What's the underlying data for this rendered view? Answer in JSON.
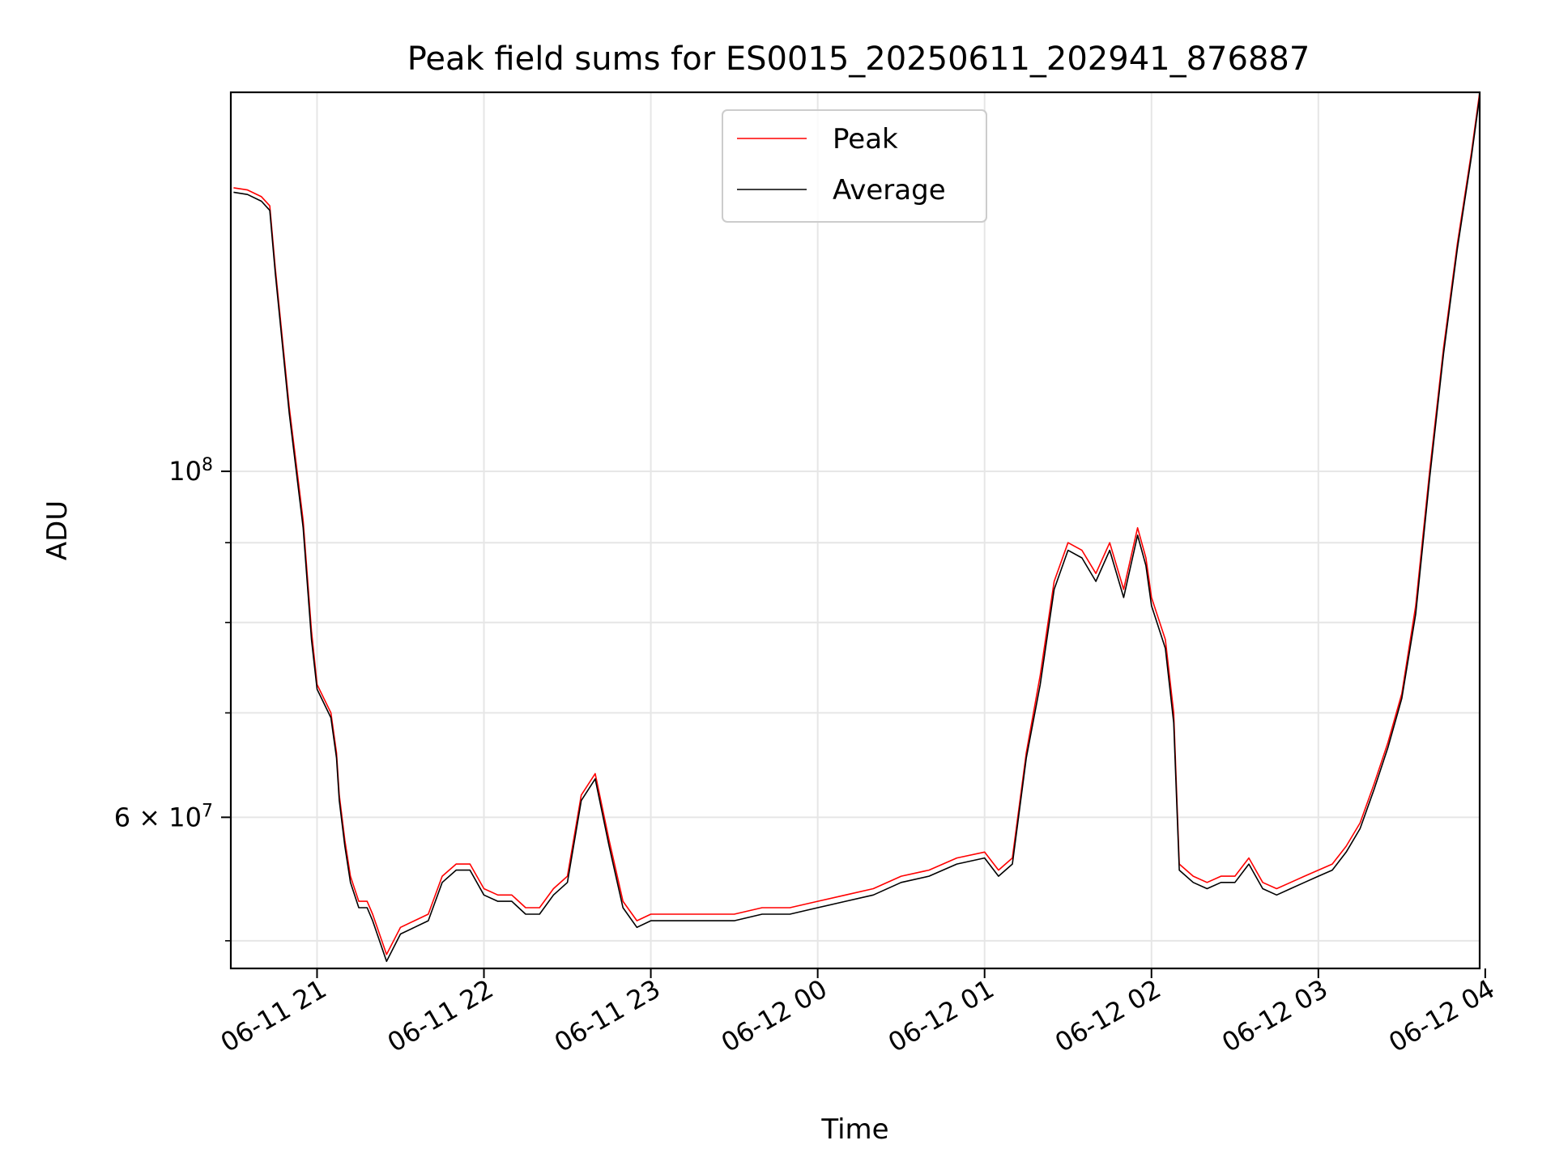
{
  "chart_data": {
    "type": "line",
    "title": "Peak field sums for ES0015_20250611_202941_876887",
    "xlabel": "Time",
    "ylabel": "ADU",
    "y_scale": "log",
    "xlim": [
      "06-11 20:29",
      "06-12 03:58"
    ],
    "ylim": [
      48000000,
      175000000
    ],
    "x_ticks": [
      "06-11 21",
      "06-11 22",
      "06-11 23",
      "06-12 00",
      "06-12 01",
      "06-12 02",
      "06-12 03",
      "06-12 04"
    ],
    "y_major_ticks": [
      {
        "value": 60000000,
        "base": "6",
        "exp": "7"
      },
      {
        "value": 100000000,
        "base": "10",
        "exp": "8"
      }
    ],
    "y_minor_ticks": [
      50000000,
      70000000,
      80000000,
      90000000
    ],
    "grid": true,
    "legend": {
      "position": "top-center",
      "entries": [
        "Peak",
        "Average"
      ]
    },
    "series": [
      {
        "name": "Peak",
        "color": "#ff0000",
        "x": [
          "20:30",
          "20:35",
          "20:40",
          "20:43",
          "20:45",
          "20:50",
          "20:55",
          "20:58",
          "21:00",
          "21:05",
          "21:07",
          "21:08",
          "21:10",
          "21:12",
          "21:15",
          "21:18",
          "21:20",
          "21:25",
          "21:30",
          "21:35",
          "21:40",
          "21:45",
          "21:50",
          "21:55",
          "22:00",
          "22:05",
          "22:10",
          "22:15",
          "22:20",
          "22:25",
          "22:30",
          "22:35",
          "22:40",
          "22:45",
          "22:50",
          "22:55",
          "23:00",
          "23:05",
          "23:10",
          "23:20",
          "23:30",
          "23:40",
          "23:50",
          "00:00",
          "00:10",
          "00:20",
          "00:30",
          "00:40",
          "00:50",
          "01:00",
          "01:05",
          "01:10",
          "01:15",
          "01:20",
          "01:25",
          "01:30",
          "01:35",
          "01:40",
          "01:45",
          "01:50",
          "01:55",
          "01:58",
          "02:00",
          "02:05",
          "02:08",
          "02:10",
          "02:15",
          "02:20",
          "02:25",
          "02:30",
          "02:35",
          "02:40",
          "02:45",
          "02:50",
          "02:55",
          "03:00",
          "03:05",
          "03:10",
          "03:15",
          "03:20",
          "03:25",
          "03:30",
          "03:35",
          "03:40",
          "03:45",
          "03:50",
          "03:55",
          "03:58"
        ],
        "values": [
          152000000,
          151500000,
          150000000,
          148000000,
          135000000,
          110000000,
          93000000,
          79000000,
          73000000,
          70000000,
          66000000,
          62000000,
          58000000,
          55000000,
          53000000,
          53000000,
          52000000,
          49000000,
          51000000,
          51500000,
          52000000,
          55000000,
          56000000,
          56000000,
          54000000,
          53500000,
          53500000,
          52500000,
          52500000,
          54000000,
          55000000,
          62000000,
          64000000,
          58000000,
          53000000,
          51500000,
          52000000,
          52000000,
          52000000,
          52000000,
          52000000,
          52500000,
          52500000,
          53000000,
          53500000,
          54000000,
          55000000,
          55500000,
          56500000,
          57000000,
          55500000,
          56500000,
          66000000,
          74000000,
          85000000,
          90000000,
          89000000,
          86000000,
          90000000,
          84000000,
          92000000,
          88000000,
          83000000,
          78000000,
          70000000,
          56000000,
          55000000,
          54500000,
          55000000,
          55000000,
          56500000,
          54500000,
          54000000,
          54500000,
          55000000,
          55500000,
          56000000,
          57500000,
          59500000,
          63000000,
          67000000,
          72000000,
          82000000,
          100000000,
          120000000,
          140000000,
          160000000,
          175000000
        ]
      },
      {
        "name": "Average",
        "color": "#000000",
        "x": [
          "20:30",
          "20:35",
          "20:40",
          "20:43",
          "20:45",
          "20:50",
          "20:55",
          "20:58",
          "21:00",
          "21:05",
          "21:07",
          "21:08",
          "21:10",
          "21:12",
          "21:15",
          "21:18",
          "21:20",
          "21:25",
          "21:30",
          "21:35",
          "21:40",
          "21:45",
          "21:50",
          "21:55",
          "22:00",
          "22:05",
          "22:10",
          "22:15",
          "22:20",
          "22:25",
          "22:30",
          "22:35",
          "22:40",
          "22:45",
          "22:50",
          "22:55",
          "23:00",
          "23:05",
          "23:10",
          "23:20",
          "23:30",
          "23:40",
          "23:50",
          "00:00",
          "00:10",
          "00:20",
          "00:30",
          "00:40",
          "00:50",
          "01:00",
          "01:05",
          "01:10",
          "01:15",
          "01:20",
          "01:25",
          "01:30",
          "01:35",
          "01:40",
          "01:45",
          "01:50",
          "01:55",
          "01:58",
          "02:00",
          "02:05",
          "02:08",
          "02:10",
          "02:15",
          "02:20",
          "02:25",
          "02:30",
          "02:35",
          "02:40",
          "02:45",
          "02:50",
          "02:55",
          "03:00",
          "03:05",
          "03:10",
          "03:15",
          "03:20",
          "03:25",
          "03:30",
          "03:35",
          "03:40",
          "03:45",
          "03:50",
          "03:55",
          "03:58"
        ],
        "values": [
          151000000,
          150500000,
          149000000,
          147000000,
          134000000,
          109000000,
          92000000,
          78000000,
          72500000,
          69500000,
          65500000,
          61500000,
          57500000,
          54500000,
          52500000,
          52500000,
          51500000,
          48500000,
          50500000,
          51000000,
          51500000,
          54500000,
          55500000,
          55500000,
          53500000,
          53000000,
          53000000,
          52000000,
          52000000,
          53500000,
          54500000,
          61500000,
          63500000,
          57500000,
          52500000,
          51000000,
          51500000,
          51500000,
          51500000,
          51500000,
          51500000,
          52000000,
          52000000,
          52500000,
          53000000,
          53500000,
          54500000,
          55000000,
          56000000,
          56500000,
          55000000,
          56000000,
          65500000,
          73000000,
          84000000,
          89000000,
          88000000,
          85000000,
          89000000,
          83000000,
          91000000,
          87000000,
          82000000,
          77000000,
          69000000,
          55500000,
          54500000,
          54000000,
          54500000,
          54500000,
          56000000,
          54000000,
          53500000,
          54000000,
          54500000,
          55000000,
          55500000,
          57000000,
          59000000,
          62500000,
          66500000,
          71500000,
          81000000,
          99000000,
          119000000,
          139000000,
          159000000,
          174000000
        ]
      }
    ]
  }
}
